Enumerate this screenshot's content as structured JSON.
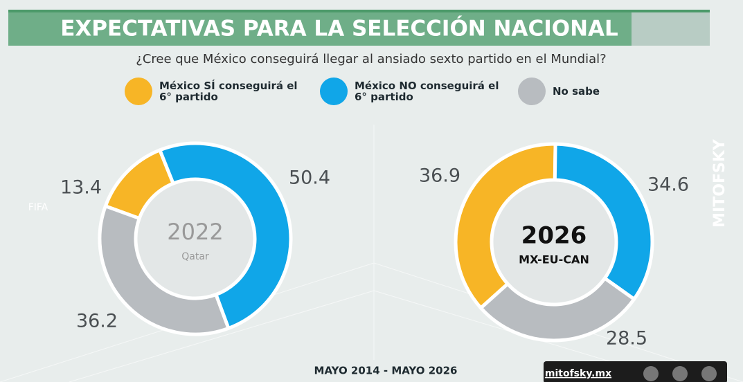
{
  "title": "EXPECTATIVAS PARA LA SELECCIÓN NACIONAL",
  "subtitle": "¿Cree que México conseguirá llegar al ansiado sexto partido en el Mundial?",
  "footer": "MAYO 2014 - MAYO 2026",
  "brand": "mitofsky.mx",
  "watermark": "MITOFSKY",
  "logo": "FIFA",
  "chart_data": [
    {
      "type": "donut",
      "center_label": "2022",
      "center_sublabel": "Qatar",
      "categories": [
        "México SÍ conseguirá el 6° partido",
        "México NO conseguirá el 6° partido",
        "No sabe"
      ],
      "values": [
        13.4,
        50.4,
        36.2
      ],
      "colors": [
        "#f7b526",
        "#10a6e8",
        "#b8bcc0"
      ]
    },
    {
      "type": "donut",
      "center_label": "2026",
      "center_sublabel": "MX-EU-CAN",
      "categories": [
        "México SÍ conseguirá el 6° partido",
        "México NO conseguirá el 6° partido",
        "No sabe"
      ],
      "values": [
        36.9,
        34.6,
        28.5
      ],
      "colors": [
        "#f7b526",
        "#10a6e8",
        "#b8bcc0"
      ]
    }
  ]
}
